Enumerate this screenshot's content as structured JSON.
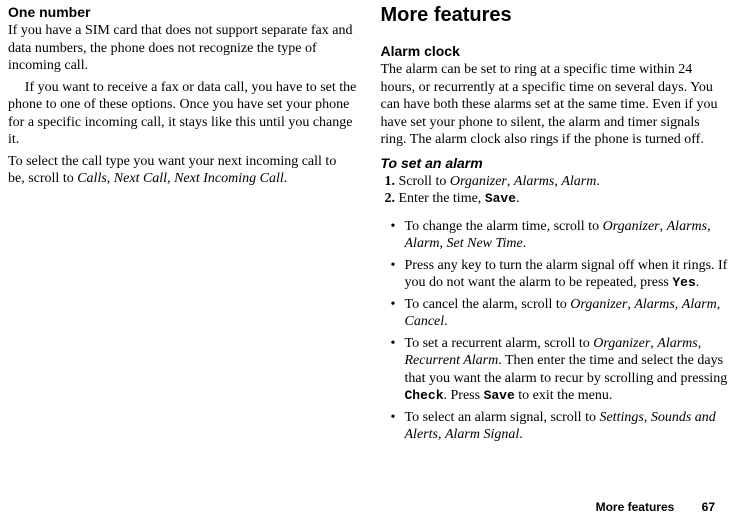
{
  "left": {
    "heading": "One number",
    "p1": "If you have a SIM card that does not support separate fax and data numbers, the phone does not recognize the type of incoming call.",
    "p2": "If you want to receive a fax or data call, you have to set the phone to one of these options. Once you have set your phone for a specific incoming call, it stays like this until you change it.",
    "p3_pre": "To select the call type you want your next incoming call to be, scroll to ",
    "p3_i1": "Calls",
    "p3_s1": ", ",
    "p3_i2": "Next Call",
    "p3_s2": ", ",
    "p3_i3": "Next Incoming Call",
    "p3_end": "."
  },
  "right": {
    "heading": "More features",
    "alarm_heading": "Alarm clock",
    "alarm_p1": "The alarm can be set to ring at a specific time within 24 hours, or recurrently at a specific time on several days. You can have both these alarms set at the same time. Even if you have set your phone to silent, the alarm and timer signals ring. The alarm clock also rings if the phone is turned off.",
    "toset_heading": "To set an alarm",
    "step1_pre": "Scroll to ",
    "step1_i1": "Organizer",
    "sep": ", ",
    "step1_i2": "Alarms",
    "step1_i3": "Alarm",
    "dot": ".",
    "step2_pre": "Enter the time, ",
    "step2_m": "Save",
    "b1_pre": "To change the alarm time, scroll to ",
    "b1_i1": "Organizer",
    "b1_i2": "Alarms",
    "b1_i3": "Alarm",
    "b1_i4": "Set New Time",
    "b2_pre": "Press any key to turn the alarm signal off when it rings. If you do not want the alarm to be repeated, press ",
    "b2_m": "Yes",
    "b3_pre": "To cancel the alarm, scroll to ",
    "b3_i1": "Organizer",
    "b3_i2": "Alarms",
    "b3_i3": "Alarm",
    "b3_i4": "Cancel",
    "b4_pre": "To set a recurrent alarm, scroll to ",
    "b4_i1": "Organizer",
    "b4_i2": "Alarms",
    "b4_i3": "Recurrent Alarm",
    "b4_mid1": ". Then enter the time and select the days that you want the alarm to recur by scrolling and pressing ",
    "b4_m1": "Check",
    "b4_mid2": ". Press ",
    "b4_m2": "Save",
    "b4_end": " to exit the menu.",
    "b5_pre": "To select an alarm signal, scroll to ",
    "b5_i1": "Settings",
    "b5_i2": "Sounds and Alerts",
    "b5_i3": "Alarm Signal"
  },
  "footer": {
    "label": "More features",
    "page": "67"
  }
}
